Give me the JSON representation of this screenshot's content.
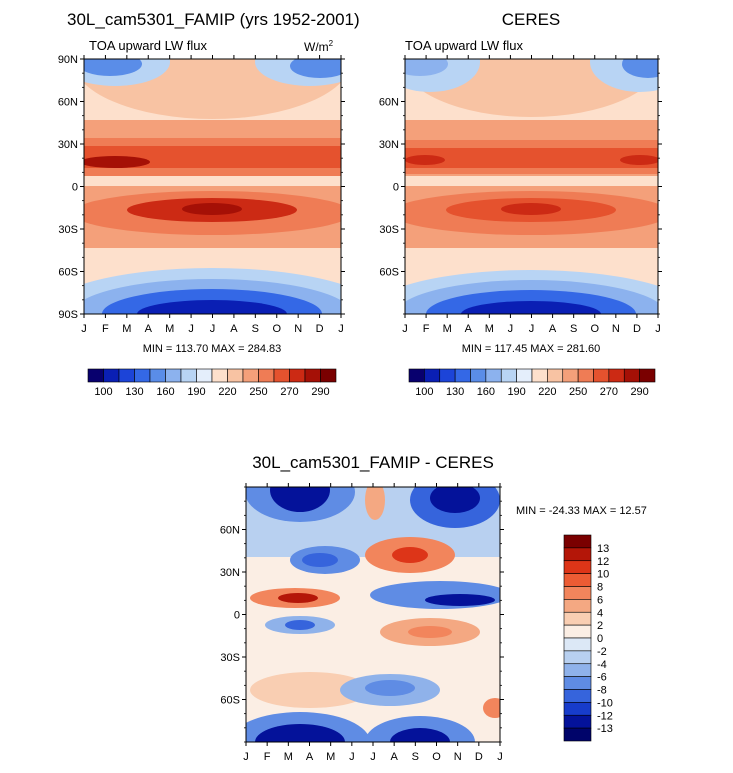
{
  "chart_data": [
    {
      "type": "heatmap",
      "id": "model",
      "title": "30L_cam5301_FAMIP (yrs 1952-2001)",
      "subtitle": "TOA upward LW flux",
      "units_base": "W/m",
      "units_exp": "2",
      "x_tick_labels": [
        "J",
        "F",
        "M",
        "A",
        "M",
        "J",
        "J",
        "A",
        "S",
        "O",
        "N",
        "D",
        "J"
      ],
      "y_tick_labels": [
        "90N",
        "60N",
        "30N",
        "0",
        "30S",
        "60S",
        "90S"
      ],
      "y_tick_values": [
        90,
        60,
        30,
        0,
        -30,
        -60,
        -90
      ],
      "ylim": [
        -90,
        90
      ],
      "min_max_text": "MIN = 113.70 MAX = 284.83",
      "min": 113.7,
      "max": 284.83,
      "colorbar_labels": [
        "100",
        "130",
        "160",
        "190",
        "220",
        "250",
        "270",
        "290"
      ]
    },
    {
      "type": "heatmap",
      "id": "obs",
      "title": "CERES",
      "subtitle": "TOA upward LW flux",
      "x_tick_labels": [
        "J",
        "F",
        "M",
        "A",
        "M",
        "J",
        "J",
        "A",
        "S",
        "O",
        "N",
        "D",
        "J"
      ],
      "y_tick_labels": [
        "60N",
        "30N",
        "0",
        "30S",
        "60S"
      ],
      "y_tick_values": [
        60,
        30,
        0,
        -30,
        -60
      ],
      "ylim": [
        -90,
        90
      ],
      "min_max_text": "MIN = 117.45 MAX = 281.60",
      "min": 117.45,
      "max": 281.6,
      "colorbar_labels": [
        "100",
        "130",
        "160",
        "190",
        "220",
        "250",
        "270",
        "290"
      ]
    },
    {
      "type": "heatmap",
      "id": "diff",
      "title": "30L_cam5301_FAMIP - CERES",
      "x_tick_labels": [
        "J",
        "F",
        "M",
        "A",
        "M",
        "J",
        "J",
        "A",
        "S",
        "O",
        "N",
        "D",
        "J"
      ],
      "y_tick_labels": [
        "60N",
        "30N",
        "0",
        "30S",
        "60S"
      ],
      "y_tick_values": [
        60,
        30,
        0,
        -30,
        -60
      ],
      "ylim": [
        -90,
        90
      ],
      "min_max_text": "MIN = -24.33 MAX =  12.57",
      "min": -24.33,
      "max": 12.57,
      "colorbar_labels": [
        "13",
        "12",
        "10",
        "8",
        "6",
        "4",
        "2",
        "0",
        "-2",
        "-4",
        "-6",
        "-8",
        "-10",
        "-12",
        "-13"
      ]
    }
  ],
  "colors": {
    "abs_scale": [
      "#08006e",
      "#0a1fb4",
      "#1c44d8",
      "#3468e6",
      "#5a8de8",
      "#8cb2ee",
      "#b8d4f4",
      "#e4eefb",
      "#fde0cc",
      "#f8c3a3",
      "#f4a07a",
      "#ef7c55",
      "#e5522e",
      "#cc2a14",
      "#a51006",
      "#7a0000"
    ],
    "diff_scale": [
      "#7a0000",
      "#b41608",
      "#dd3518",
      "#ec5c34",
      "#f2855c",
      "#f4a882",
      "#f9ceb2",
      "#fbeee4",
      "#dce8f6",
      "#b8d0f0",
      "#8fb2ea",
      "#5f8ce4",
      "#3664dc",
      "#173ccb",
      "#04129a",
      "#00046a"
    ]
  }
}
